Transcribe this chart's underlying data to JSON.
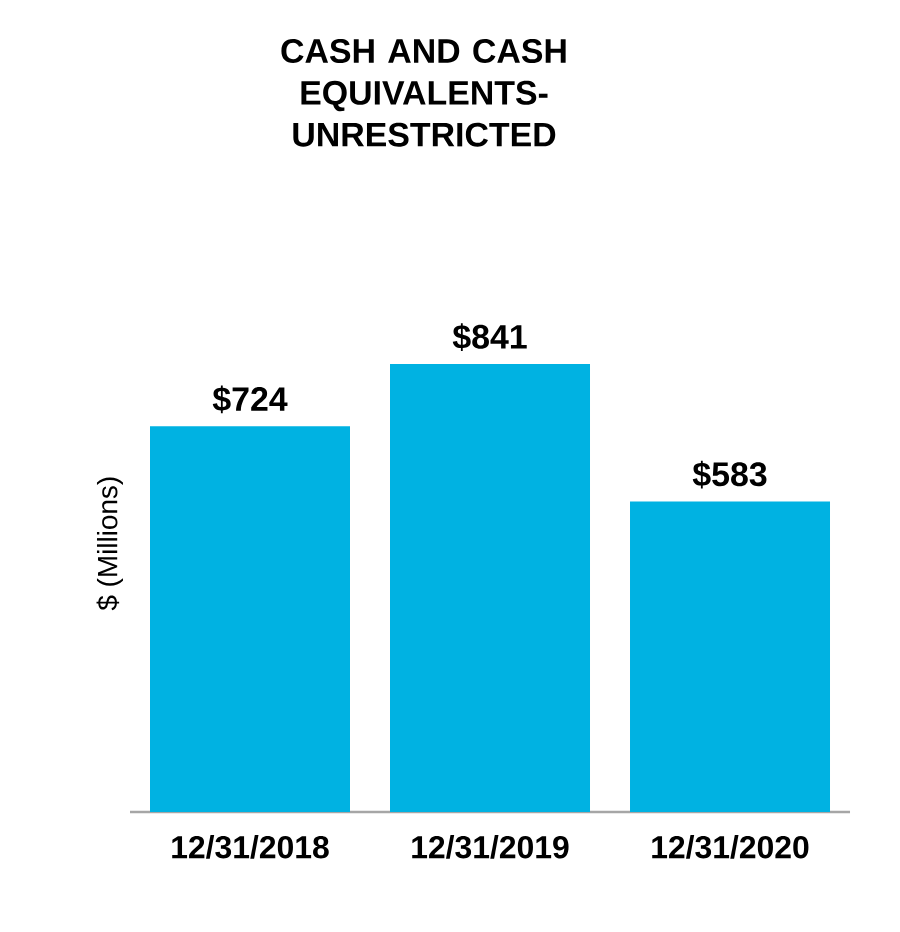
{
  "chart_data": {
    "type": "bar",
    "title": "CASH AND CASH EQUIVALENTS-UNRESTRICTED",
    "ylabel": "$ (Millions)",
    "categories": [
      "12/31/2018",
      "12/31/2019",
      "12/31/2020"
    ],
    "values": [
      724,
      841,
      583
    ],
    "color": "#00b2e2",
    "value_labels": [
      "$724",
      "$841",
      "$583"
    ]
  }
}
